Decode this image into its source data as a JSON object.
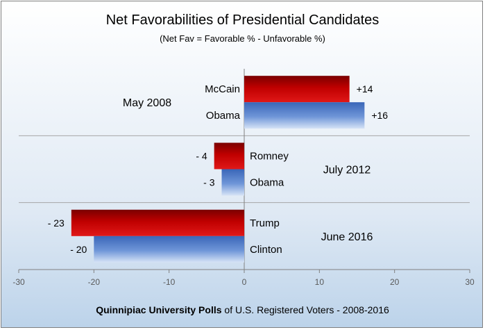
{
  "title": "Net Favorabilities of Presidential Candidates",
  "subtitle": "(Net Fav = Favorable % - Unfavorable %)",
  "footer": {
    "bold": "Quinnipiac University Polls",
    "rest": " of U.S. Registered Voters - 2008-2016"
  },
  "colors": {
    "republican": "#c00000",
    "democrat": "#4472c4",
    "grid": "#a6a6a6",
    "tick_text": "#595959"
  },
  "chart_data": {
    "type": "bar",
    "orientation": "horizontal",
    "xlim": [
      -30,
      30
    ],
    "xticks": [
      "-30",
      "-20",
      "-10",
      "0",
      "10",
      "20",
      "30"
    ],
    "xtick_values": [
      -30,
      -20,
      -10,
      0,
      10,
      20,
      30
    ],
    "groups": [
      {
        "label": "May 2008",
        "bars": [
          {
            "name": "McCain",
            "value": 14,
            "data_label": "+14",
            "party": "republican"
          },
          {
            "name": "Obama",
            "value": 16,
            "data_label": "+16",
            "party": "democrat"
          }
        ]
      },
      {
        "label": "July 2012",
        "bars": [
          {
            "name": "Romney",
            "value": -4,
            "data_label": "- 4",
            "party": "republican"
          },
          {
            "name": "Obama",
            "value": -3,
            "data_label": "- 3",
            "party": "democrat"
          }
        ]
      },
      {
        "label": "June 2016",
        "bars": [
          {
            "name": "Trump",
            "value": -23,
            "data_label": "- 23",
            "party": "republican"
          },
          {
            "name": "Clinton",
            "value": -20,
            "data_label": "- 20",
            "party": "democrat"
          }
        ]
      }
    ]
  }
}
